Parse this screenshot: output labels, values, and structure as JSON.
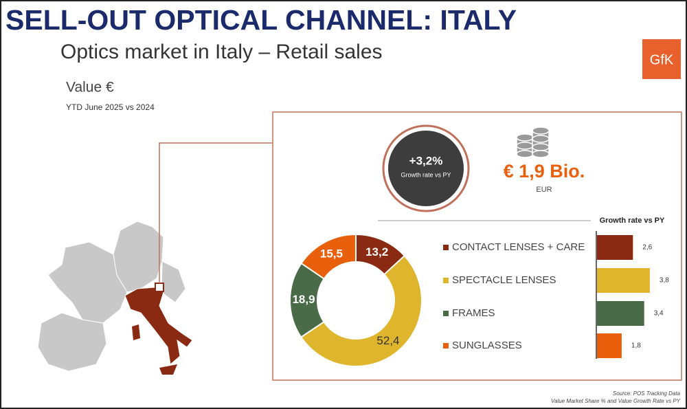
{
  "header": {
    "title": "SELL-OUT OPTICAL CHANNEL: ITALY",
    "subtitle": "Optics market in Italy – Retail sales",
    "logo": "GfK",
    "measure": "Value €",
    "period": "YTD June 2025 vs 2024"
  },
  "kpi": {
    "growth": "+3,2%",
    "growth_label": "Growth rate vs PY",
    "total": "€ 1,9 Bio.",
    "currency": "EUR"
  },
  "chart_data": [
    {
      "type": "donut",
      "categories": [
        "CONTACT LENSES + CARE",
        "SPECTACLE LENSES",
        "FRAMES",
        "SUNGLASSES"
      ],
      "values": [
        13.2,
        52.4,
        18.9,
        15.5
      ],
      "value_labels": [
        "13,2",
        "52,4",
        "18,9",
        "15,5"
      ],
      "colors": [
        "#8b2a12",
        "#e0b52e",
        "#4a6b47",
        "#e8600c"
      ]
    },
    {
      "type": "hbar",
      "title": "Growth rate vs PY",
      "values": [
        2.6,
        3.8,
        3.4,
        1.8
      ],
      "value_labels": [
        "2,6",
        "3,8",
        "3,4",
        "1,8"
      ],
      "colors": [
        "#8b2a12",
        "#e0b52e",
        "#4a6b47",
        "#e8600c"
      ]
    }
  ],
  "footer": {
    "source": "Source: POS Tracking Data",
    "note": "Value Market Share  % and Value Growth Rate vs PY"
  }
}
